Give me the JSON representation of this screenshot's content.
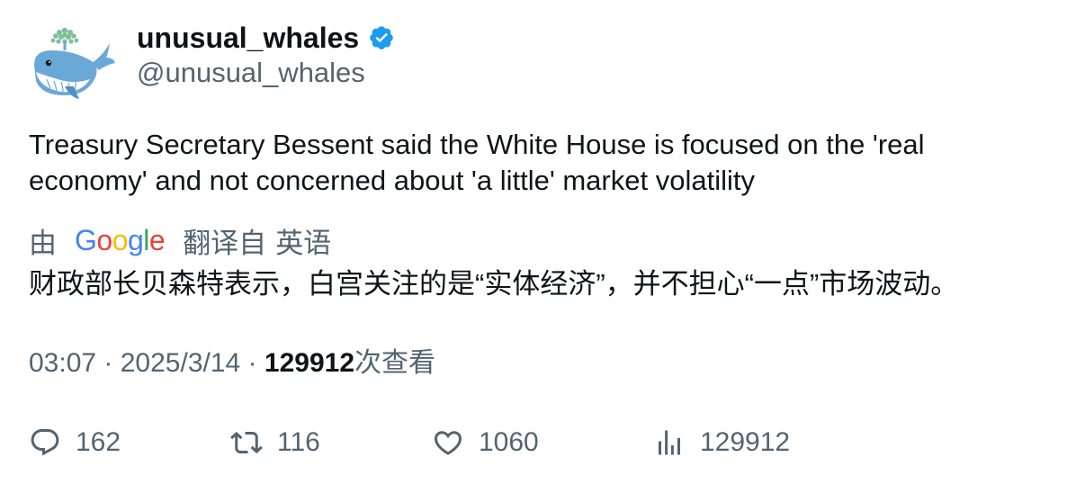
{
  "author": {
    "display_name": "unusual_whales",
    "handle": "@unusual_whales",
    "verified": true,
    "verified_color": "#1d9bf0"
  },
  "tweet": {
    "text": "Treasury Secretary Bessent said the White House is focused on the 'real economy' and not concerned about 'a little' market volatility"
  },
  "translation": {
    "by_prefix": "由",
    "provider_letters": [
      "G",
      "o",
      "o",
      "g",
      "l",
      "e"
    ],
    "from_label": "翻译自",
    "language": "英语",
    "text": "财政部长贝森特表示，白宫关注的是“实体经济”，并不担心“一点”市场波动。"
  },
  "meta": {
    "time": "03:07",
    "separator": "·",
    "date": "2025/3/14",
    "views_count": "129912",
    "views_label": "次查看"
  },
  "actions": {
    "reply_count": "162",
    "retweet_count": "116",
    "like_count": "1060",
    "views_count": "129912"
  },
  "colors": {
    "primary_text": "#0f1419",
    "secondary_text": "#536471",
    "whale_blue": "#6aa8d8",
    "whale_belly": "#ffffff",
    "spout_green": "#7fbf9a"
  },
  "icons": {
    "avatar": "whale-avatar",
    "verified": "verified-badge-icon",
    "reply": "reply-icon",
    "retweet": "retweet-icon",
    "like": "like-icon",
    "views": "views-icon"
  }
}
